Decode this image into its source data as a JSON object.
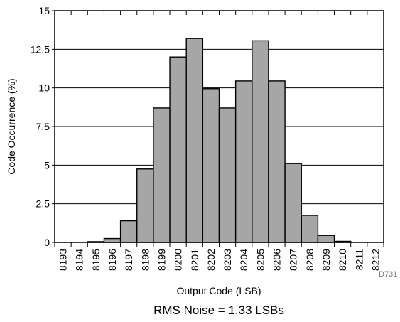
{
  "chart_data": {
    "type": "bar",
    "title": "",
    "xlabel": "Output Code (LSB)",
    "ylabel": "Code Occurrence (%)",
    "ylim": [
      0,
      15
    ],
    "yticks": [
      "0",
      "2.5",
      "5",
      "7.5",
      "10",
      "12.5",
      "15"
    ],
    "grid": true,
    "categories": [
      "8193",
      "8194",
      "8195",
      "8196",
      "8197",
      "8198",
      "8199",
      "8200",
      "8201",
      "8202",
      "8203",
      "8204",
      "8205",
      "8206",
      "8207",
      "8208",
      "8209",
      "8210",
      "8211",
      "8212"
    ],
    "values": [
      0.0,
      0.0,
      0.05,
      0.25,
      1.4,
      4.75,
      8.7,
      12.0,
      13.2,
      9.95,
      8.7,
      10.45,
      13.05,
      10.45,
      5.1,
      1.75,
      0.45,
      0.07,
      0.0,
      0.0
    ],
    "bar_color": "#a6a6a6",
    "annotation": "RMS Noise = 1.33 LSBs",
    "figure_id": "D731"
  }
}
